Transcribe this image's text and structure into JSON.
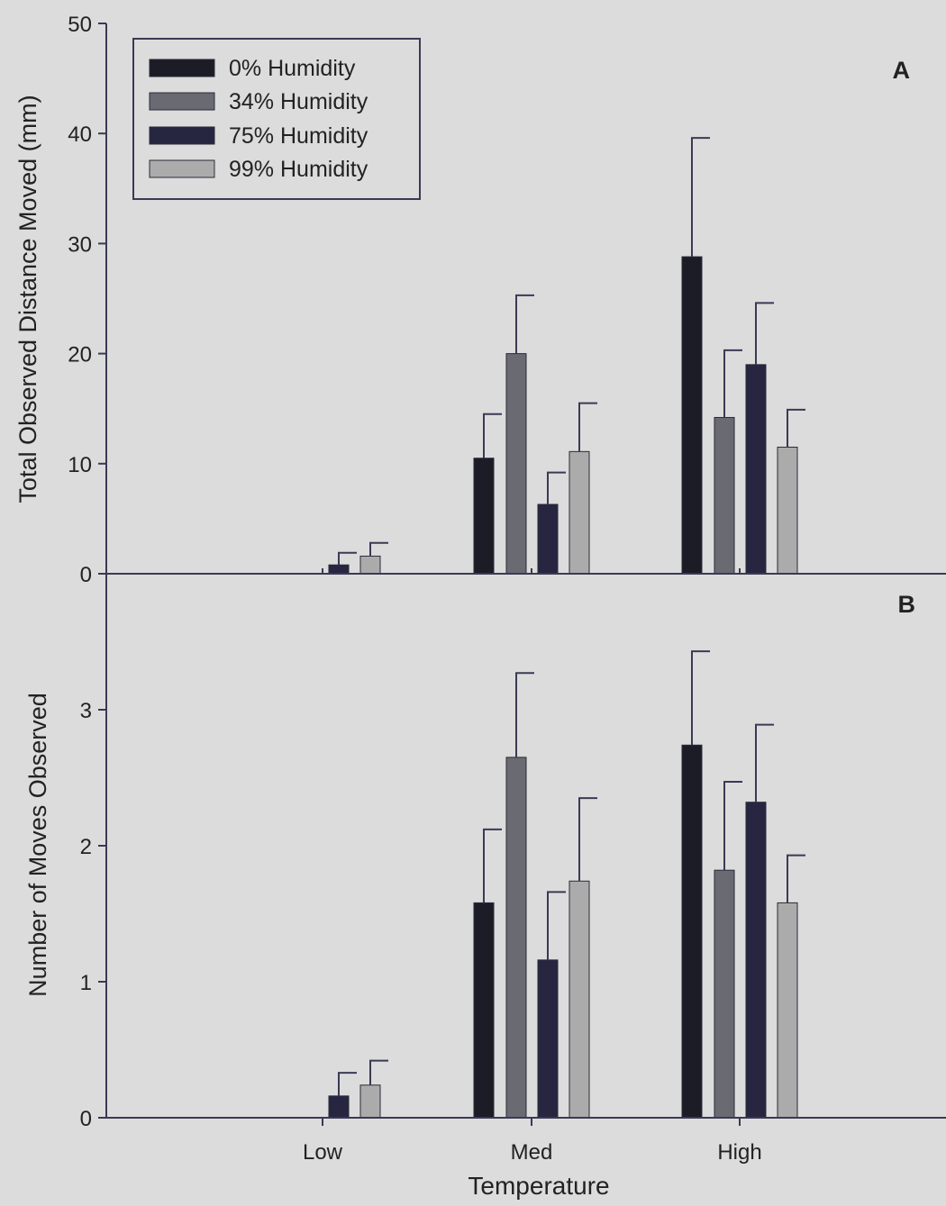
{
  "colors": {
    "background": "#dcdcdc",
    "axis": "#3a3a55",
    "errorbar": "#3a3a55",
    "bar_edge": "#2a2a3a"
  },
  "chart_data": {
    "type": "bar",
    "categories": [
      "Low",
      "Med",
      "High"
    ],
    "xlabel": "Temperature",
    "legend": {
      "placement": "top-left",
      "entries": [
        "0% Humidity",
        "34% Humidity",
        "75% Humidity",
        "99% Humidity"
      ]
    },
    "panels": [
      {
        "label": "A",
        "ylabel": "Total Observed Distance Moved (mm)",
        "ylim": [
          0,
          50
        ],
        "yticks": [
          0,
          10,
          20,
          30,
          40,
          50
        ],
        "series": [
          {
            "name": "0% Humidity",
            "color": "#1c1c26",
            "values": [
              0,
              10.5,
              28.8
            ],
            "errors": [
              0,
              4.0,
              10.8
            ]
          },
          {
            "name": "34% Humidity",
            "color": "#6a6a72",
            "values": [
              0,
              20.0,
              14.2
            ],
            "errors": [
              0,
              5.3,
              6.1
            ]
          },
          {
            "name": "75% Humidity",
            "color": "#262640",
            "values": [
              0.8,
              6.3,
              19.0
            ],
            "errors": [
              1.1,
              2.9,
              5.6
            ]
          },
          {
            "name": "99% Humidity",
            "color": "#ababab",
            "values": [
              1.6,
              11.1,
              11.5
            ],
            "errors": [
              1.2,
              4.4,
              3.4
            ]
          }
        ]
      },
      {
        "label": "B",
        "ylabel": "Number of Moves Observed",
        "ylim": [
          0,
          4
        ],
        "yticks": [
          0,
          1,
          2,
          3
        ],
        "series": [
          {
            "name": "0% Humidity",
            "color": "#1c1c26",
            "values": [
              0,
              1.58,
              2.74
            ],
            "errors": [
              0,
              0.54,
              0.69
            ]
          },
          {
            "name": "34% Humidity",
            "color": "#6a6a72",
            "values": [
              0,
              2.65,
              1.82
            ],
            "errors": [
              0,
              0.62,
              0.65
            ]
          },
          {
            "name": "75% Humidity",
            "color": "#262640",
            "values": [
              0.16,
              1.16,
              2.32
            ],
            "errors": [
              0.17,
              0.5,
              0.57
            ]
          },
          {
            "name": "99% Humidity",
            "color": "#ababab",
            "values": [
              0.24,
              1.74,
              1.58
            ],
            "errors": [
              0.18,
              0.61,
              0.35
            ]
          }
        ]
      }
    ]
  }
}
